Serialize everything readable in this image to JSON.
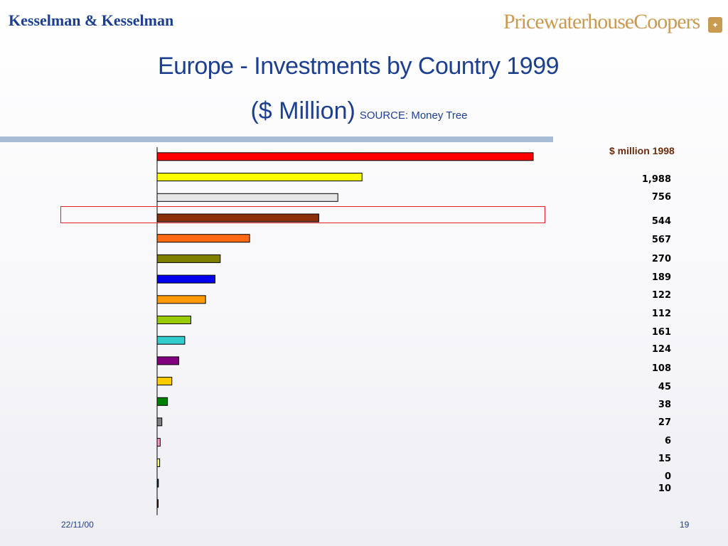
{
  "header": {
    "brand_left": "Kesselman & Kesselman",
    "brand_right": "PricewaterhouseCoopers"
  },
  "slide": {
    "title_line1": "Europe - Investments by Country 1999",
    "title_line2": "($ Million)",
    "source": "SOURCE: Money Tree"
  },
  "chart_data": {
    "type": "bar",
    "orientation": "horizontal",
    "title": "Europe - Investments by Country 1999",
    "unit": "$ Million",
    "values": [
      4350,
      2370,
      2090,
      1870,
      1070,
      730,
      670,
      560,
      390,
      320,
      250,
      170,
      120,
      55,
      35,
      30,
      15,
      10
    ],
    "colors": [
      "#ff0000",
      "#ffff00",
      "#e6e6e6",
      "#8b2e0a",
      "#ff6a13",
      "#808000",
      "#0000ee",
      "#ff9900",
      "#99cc00",
      "#33cccc",
      "#800080",
      "#ffcc00",
      "#008000",
      "#808080",
      "#ff99cc",
      "#ffff66",
      "#003366",
      "#006600"
    ],
    "grid": false,
    "legend": "right",
    "comparison_label": "$ million 1998",
    "comparison_values": [
      "1,988",
      "756",
      "544",
      "567",
      "270",
      "189",
      "122",
      "112",
      "161",
      "124",
      "108",
      "45",
      "38",
      "27",
      "6",
      "15",
      "0",
      "10"
    ]
  },
  "footer": {
    "date": "22/11/00",
    "page": "19"
  }
}
